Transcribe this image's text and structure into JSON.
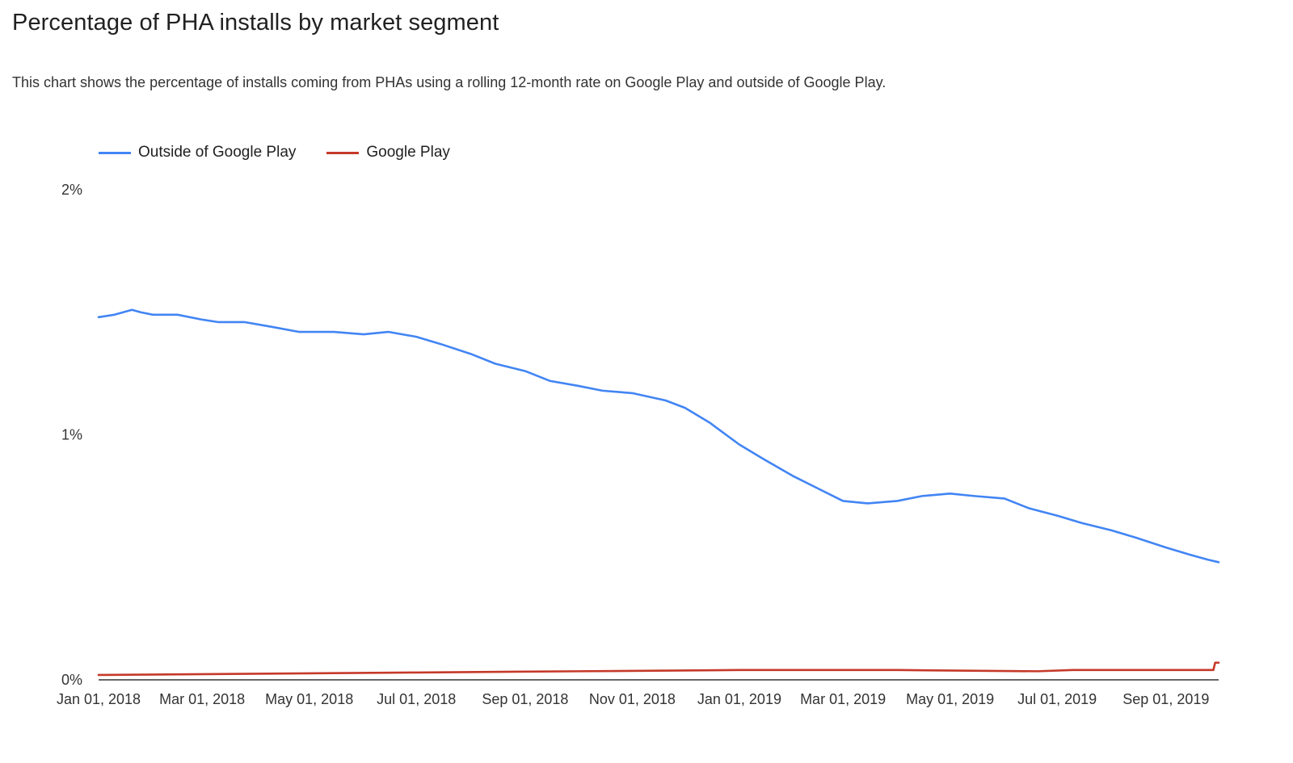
{
  "title": "Percentage of PHA installs by market segment",
  "subtitle": "This chart shows the percentage of installs coming from PHAs using a rolling 12-month rate on Google Play and outside of Google Play.",
  "chart_data": {
    "type": "line",
    "title": "Percentage of PHA installs by market segment",
    "xlabel": "",
    "ylabel": "",
    "x_tick_labels": [
      "Jan 01, 2018",
      "Mar 01, 2018",
      "May 01, 2018",
      "Jul 01, 2018",
      "Sep 01, 2018",
      "Nov 01, 2018",
      "Jan 01, 2019",
      "Mar 01, 2019",
      "May 01, 2019",
      "Jul 01, 2019",
      "Sep 01, 2019"
    ],
    "y_tick_labels": [
      "0%",
      "1%",
      "2%"
    ],
    "ylim": [
      0,
      2
    ],
    "xlim": [
      "2018-01-01",
      "2019-10-01"
    ],
    "grid": false,
    "legend_position": "top-left",
    "series": [
      {
        "name": "Outside of Google Play",
        "color": "#4285f4",
        "points": [
          [
            "2018-01-01",
            1.48
          ],
          [
            "2018-01-10",
            1.49
          ],
          [
            "2018-01-15",
            1.5
          ],
          [
            "2018-01-20",
            1.51
          ],
          [
            "2018-01-25",
            1.5
          ],
          [
            "2018-02-01",
            1.49
          ],
          [
            "2018-02-15",
            1.49
          ],
          [
            "2018-03-01",
            1.47
          ],
          [
            "2018-03-10",
            1.46
          ],
          [
            "2018-03-25",
            1.46
          ],
          [
            "2018-04-10",
            1.44
          ],
          [
            "2018-04-25",
            1.42
          ],
          [
            "2018-05-15",
            1.42
          ],
          [
            "2018-06-01",
            1.41
          ],
          [
            "2018-06-15",
            1.42
          ],
          [
            "2018-07-01",
            1.4
          ],
          [
            "2018-07-15",
            1.37
          ],
          [
            "2018-08-01",
            1.33
          ],
          [
            "2018-08-15",
            1.29
          ],
          [
            "2018-09-01",
            1.26
          ],
          [
            "2018-09-15",
            1.22
          ],
          [
            "2018-10-01",
            1.2
          ],
          [
            "2018-10-15",
            1.18
          ],
          [
            "2018-11-01",
            1.17
          ],
          [
            "2018-11-20",
            1.14
          ],
          [
            "2018-12-01",
            1.11
          ],
          [
            "2018-12-15",
            1.05
          ],
          [
            "2019-01-01",
            0.96
          ],
          [
            "2019-01-15",
            0.9
          ],
          [
            "2019-02-01",
            0.83
          ],
          [
            "2019-02-15",
            0.78
          ],
          [
            "2019-03-01",
            0.73
          ],
          [
            "2019-03-15",
            0.72
          ],
          [
            "2019-04-01",
            0.73
          ],
          [
            "2019-04-15",
            0.75
          ],
          [
            "2019-05-01",
            0.76
          ],
          [
            "2019-05-15",
            0.75
          ],
          [
            "2019-06-01",
            0.74
          ],
          [
            "2019-06-15",
            0.7
          ],
          [
            "2019-07-01",
            0.67
          ],
          [
            "2019-07-15",
            0.64
          ],
          [
            "2019-08-01",
            0.61
          ],
          [
            "2019-08-15",
            0.58
          ],
          [
            "2019-09-01",
            0.54
          ],
          [
            "2019-09-15",
            0.51
          ],
          [
            "2019-09-25",
            0.49
          ],
          [
            "2019-10-01",
            0.48
          ]
        ]
      },
      {
        "name": "Google Play",
        "color": "#c53929",
        "points": [
          [
            "2018-01-01",
            0.02
          ],
          [
            "2018-04-01",
            0.025
          ],
          [
            "2018-07-01",
            0.03
          ],
          [
            "2018-10-01",
            0.035
          ],
          [
            "2019-01-01",
            0.04
          ],
          [
            "2019-04-01",
            0.04
          ],
          [
            "2019-06-20",
            0.035
          ],
          [
            "2019-07-10",
            0.04
          ],
          [
            "2019-09-28",
            0.04
          ],
          [
            "2019-09-29",
            0.07
          ],
          [
            "2019-10-01",
            0.07
          ]
        ]
      }
    ]
  }
}
